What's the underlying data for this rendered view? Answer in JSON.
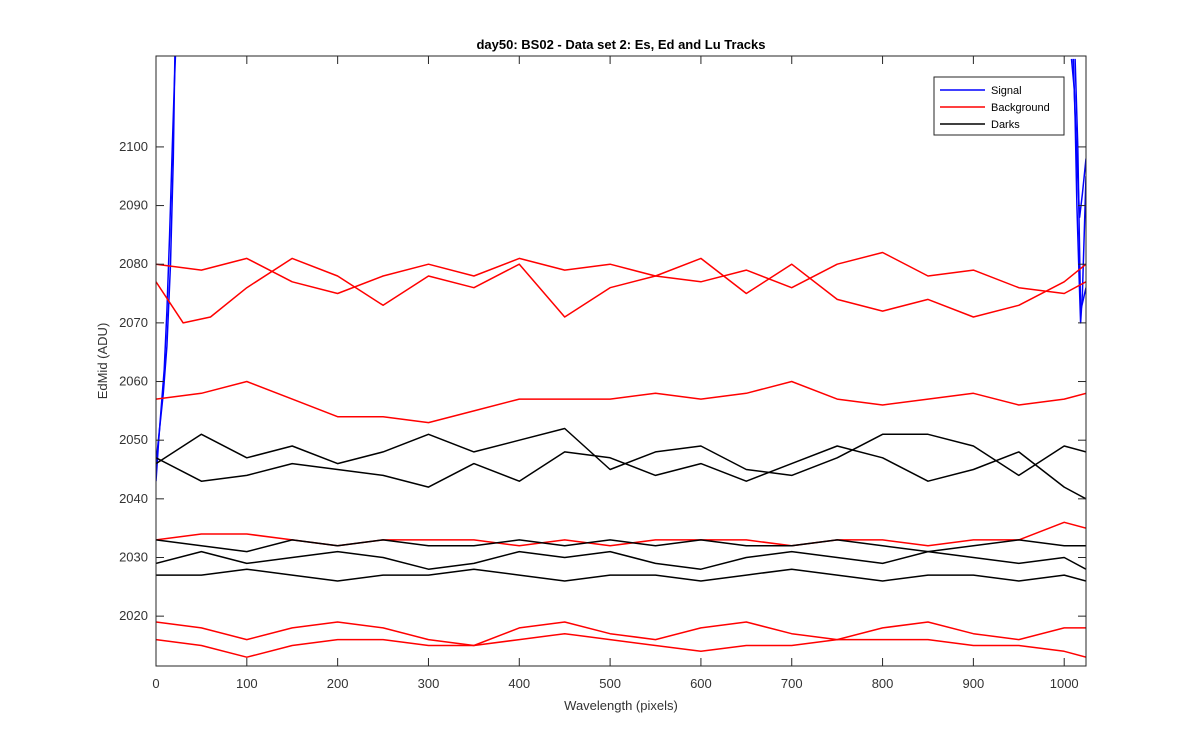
{
  "chart_data": {
    "type": "line",
    "title": "day50: BS02 - Data set 2: Es, Ed and Lu Tracks",
    "xlabel": "Wavelength (pixels)",
    "ylabel": "EdMid (ADU)",
    "xlim": [
      0,
      1024
    ],
    "ylim": [
      2011.5,
      2115.5
    ],
    "xticks": [
      0,
      100,
      200,
      300,
      400,
      500,
      600,
      700,
      800,
      900,
      1000
    ],
    "yticks": [
      2020,
      2030,
      2040,
      2050,
      2060,
      2070,
      2080,
      2090,
      2100
    ],
    "grid": false,
    "legend": {
      "position": "top-right",
      "entries": [
        {
          "name": "Signal",
          "color": "#0000ff"
        },
        {
          "name": "Background",
          "color": "#ff0000"
        },
        {
          "name": "Darks",
          "color": "#000000"
        }
      ]
    },
    "series": [
      {
        "name": "Signal",
        "color": "#0000ff",
        "x": [
          0,
          3,
          6,
          9,
          12,
          15,
          18,
          20,
          22
        ],
        "y": [
          2043,
          2050,
          2056,
          2062,
          2072,
          2085,
          2100,
          2110,
          2118
        ]
      },
      {
        "name": "Signal",
        "color": "#0000ff",
        "x": [
          0,
          4,
          8,
          12,
          16,
          19,
          21
        ],
        "y": [
          2046,
          2052,
          2058,
          2066,
          2080,
          2098,
          2118
        ]
      },
      {
        "name": "Signal",
        "color": "#0000ff",
        "x": [
          1010,
          1012,
          1014,
          1016,
          1018,
          1020,
          1022,
          1024
        ],
        "y": [
          2115,
          2105,
          2090,
          2080,
          2070,
          2075,
          2085,
          2095
        ]
      },
      {
        "name": "Signal",
        "color": "#0000ff",
        "x": [
          1008,
          1011,
          1014,
          1017,
          1020,
          1024
        ],
        "y": [
          2115,
          2110,
          2098,
          2088,
          2092,
          2098
        ]
      },
      {
        "name": "Signal",
        "color": "#0000ff",
        "x": [
          1012,
          1015,
          1018,
          1021,
          1024
        ],
        "y": [
          2115,
          2100,
          2072,
          2074,
          2076
        ]
      },
      {
        "name": "Background",
        "color": "#ff0000",
        "x": [
          0,
          50,
          100,
          150,
          200,
          250,
          300,
          350,
          400,
          450,
          500,
          550,
          600,
          650,
          700,
          750,
          800,
          850,
          900,
          950,
          1000,
          1024
        ],
        "y": [
          2080,
          2079,
          2081,
          2077,
          2075,
          2078,
          2080,
          2078,
          2081,
          2079,
          2080,
          2078,
          2077,
          2079,
          2076,
          2080,
          2082,
          2078,
          2079,
          2076,
          2075,
          2077
        ]
      },
      {
        "name": "Background",
        "color": "#ff0000",
        "x": [
          0,
          30,
          60,
          100,
          150,
          200,
          250,
          300,
          350,
          400,
          450,
          500,
          550,
          600,
          650,
          700,
          750,
          800,
          850,
          900,
          950,
          1000,
          1024
        ],
        "y": [
          2077,
          2070,
          2071,
          2076,
          2081,
          2078,
          2073,
          2078,
          2076,
          2080,
          2071,
          2076,
          2078,
          2081,
          2075,
          2080,
          2074,
          2072,
          2074,
          2071,
          2073,
          2077,
          2080
        ]
      },
      {
        "name": "Background",
        "color": "#ff0000",
        "x": [
          0,
          50,
          100,
          150,
          200,
          250,
          300,
          350,
          400,
          450,
          500,
          550,
          600,
          650,
          700,
          750,
          800,
          850,
          900,
          950,
          1000,
          1024
        ],
        "y": [
          2057,
          2058,
          2060,
          2057,
          2054,
          2054,
          2053,
          2055,
          2057,
          2057,
          2057,
          2058,
          2057,
          2058,
          2060,
          2057,
          2056,
          2057,
          2058,
          2056,
          2057,
          2058
        ]
      },
      {
        "name": "Background",
        "color": "#ff0000",
        "x": [
          0,
          50,
          100,
          150,
          200,
          250,
          300,
          350,
          400,
          450,
          500,
          550,
          600,
          650,
          700,
          750,
          800,
          850,
          900,
          950,
          1000,
          1024
        ],
        "y": [
          2033,
          2034,
          2034,
          2033,
          2032,
          2033,
          2033,
          2033,
          2032,
          2033,
          2032,
          2033,
          2033,
          2033,
          2032,
          2033,
          2033,
          2032,
          2033,
          2033,
          2036,
          2035
        ]
      },
      {
        "name": "Background",
        "color": "#ff0000",
        "x": [
          0,
          50,
          100,
          150,
          200,
          250,
          300,
          350,
          400,
          450,
          500,
          550,
          600,
          650,
          700,
          750,
          800,
          850,
          900,
          950,
          1000,
          1024
        ],
        "y": [
          2019,
          2018,
          2016,
          2018,
          2019,
          2018,
          2016,
          2015,
          2018,
          2019,
          2017,
          2016,
          2018,
          2019,
          2017,
          2016,
          2018,
          2019,
          2017,
          2016,
          2018,
          2018
        ]
      },
      {
        "name": "Background",
        "color": "#ff0000",
        "x": [
          0,
          50,
          100,
          150,
          200,
          250,
          300,
          350,
          400,
          450,
          500,
          550,
          600,
          650,
          700,
          750,
          800,
          850,
          900,
          950,
          1000,
          1024
        ],
        "y": [
          2016,
          2015,
          2013,
          2015,
          2016,
          2016,
          2015,
          2015,
          2016,
          2017,
          2016,
          2015,
          2014,
          2015,
          2015,
          2016,
          2016,
          2016,
          2015,
          2015,
          2014,
          2013
        ]
      },
      {
        "name": "Darks",
        "color": "#000000",
        "x": [
          0,
          50,
          100,
          150,
          200,
          250,
          300,
          350,
          400,
          450,
          500,
          550,
          600,
          650,
          700,
          750,
          800,
          850,
          900,
          950,
          1000,
          1024
        ],
        "y": [
          2046,
          2051,
          2047,
          2049,
          2046,
          2048,
          2051,
          2048,
          2050,
          2052,
          2045,
          2048,
          2049,
          2045,
          2044,
          2047,
          2051,
          2051,
          2049,
          2044,
          2049,
          2048
        ]
      },
      {
        "name": "Darks",
        "color": "#000000",
        "x": [
          0,
          50,
          100,
          150,
          200,
          250,
          300,
          350,
          400,
          450,
          500,
          550,
          600,
          650,
          700,
          750,
          800,
          850,
          900,
          950,
          1000,
          1024
        ],
        "y": [
          2047,
          2043,
          2044,
          2046,
          2045,
          2044,
          2042,
          2046,
          2043,
          2048,
          2047,
          2044,
          2046,
          2043,
          2046,
          2049,
          2047,
          2043,
          2045,
          2048,
          2042,
          2040
        ]
      },
      {
        "name": "Darks",
        "color": "#000000",
        "x": [
          0,
          50,
          100,
          150,
          200,
          250,
          300,
          350,
          400,
          450,
          500,
          550,
          600,
          650,
          700,
          750,
          800,
          850,
          900,
          950,
          1000,
          1024
        ],
        "y": [
          2033,
          2032,
          2031,
          2033,
          2032,
          2033,
          2032,
          2032,
          2033,
          2032,
          2033,
          2032,
          2033,
          2032,
          2032,
          2033,
          2032,
          2031,
          2032,
          2033,
          2032,
          2032
        ]
      },
      {
        "name": "Darks",
        "color": "#000000",
        "x": [
          0,
          50,
          100,
          150,
          200,
          250,
          300,
          350,
          400,
          450,
          500,
          550,
          600,
          650,
          700,
          750,
          800,
          850,
          900,
          950,
          1000,
          1024
        ],
        "y": [
          2029,
          2031,
          2029,
          2030,
          2031,
          2030,
          2028,
          2029,
          2031,
          2030,
          2031,
          2029,
          2028,
          2030,
          2031,
          2030,
          2029,
          2031,
          2030,
          2029,
          2030,
          2028
        ]
      },
      {
        "name": "Darks",
        "color": "#000000",
        "x": [
          0,
          50,
          100,
          150,
          200,
          250,
          300,
          350,
          400,
          450,
          500,
          550,
          600,
          650,
          700,
          750,
          800,
          850,
          900,
          950,
          1000,
          1024
        ],
        "y": [
          2027,
          2027,
          2028,
          2027,
          2026,
          2027,
          2027,
          2028,
          2027,
          2026,
          2027,
          2027,
          2026,
          2027,
          2028,
          2027,
          2026,
          2027,
          2027,
          2026,
          2027,
          2026
        ]
      }
    ]
  }
}
